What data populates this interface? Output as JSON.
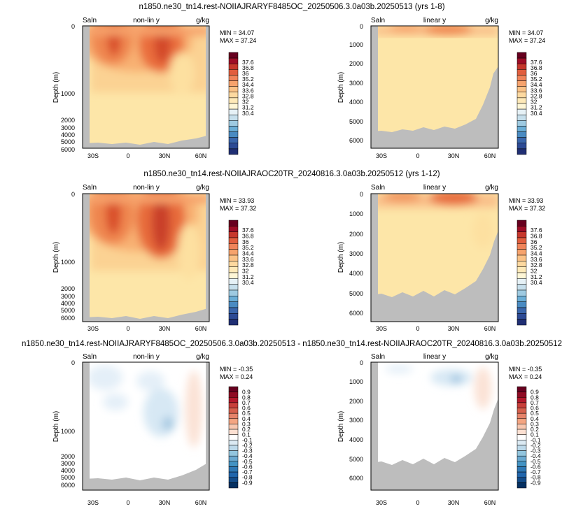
{
  "rows": [
    {
      "title": "n1850.ne30_tn14.rest-NOIIAJRARYF8485OC_20250506.3.0a03b.20250513 (yrs 1-8)",
      "min_text": "MIN = 34.07",
      "max_text": "MAX = 37.24",
      "colorbar": [
        "37.6",
        "36.8",
        "36",
        "35.2",
        "34.4",
        "33.6",
        "32.8",
        "32",
        "31.2",
        "30.4"
      ]
    },
    {
      "title": "n1850.ne30_tn14.rest-NOIIAJRAOC20TR_20240816.3.0a03b.20250512 (yrs 1-12)",
      "min_text": "MIN = 33.93",
      "max_text": "MAX = 37.32",
      "colorbar": [
        "37.6",
        "36.8",
        "36",
        "35.2",
        "34.4",
        "33.6",
        "32.8",
        "32",
        "31.2",
        "30.4"
      ]
    },
    {
      "title": "n1850.ne30_tn14.rest-NOIIAJRARYF8485OC_20250506.3.0a03b.20250513 - n1850.ne30_tn14.rest-NOIIAJRAOC20TR_20240816.3.0a03b.20250512",
      "min_text": "MIN = -0.35",
      "max_text": "MAX =  0.24",
      "colorbar": [
        "0.9",
        "0.8",
        "0.7",
        "0.6",
        "0.5",
        "0.4",
        "0.3",
        "0.2",
        "0.1",
        "-0.1",
        "-0.2",
        "-0.3",
        "-0.4",
        "-0.5",
        "-0.6",
        "-0.7",
        "-0.8",
        "-0.9"
      ]
    }
  ],
  "panel_labels": {
    "variable": "Saln",
    "units": "g/kg",
    "left_mode": "non-lin y",
    "right_mode": "linear y",
    "ylabel": "Depth (m)"
  },
  "chart_data": [
    {
      "type": "heatmap",
      "variable": "Saln",
      "units": "g/kg",
      "yscale": "non-lin y",
      "ylabel": "Depth (m)",
      "xticks": [
        "30S",
        "0",
        "30N",
        "60N"
      ],
      "yticks": [
        "0",
        "1000",
        "2000",
        "3000",
        "4000",
        "5000",
        "6000"
      ],
      "min": 34.07,
      "max": 37.24
    },
    {
      "type": "heatmap",
      "variable": "Saln",
      "units": "g/kg",
      "yscale": "linear y",
      "ylabel": "Depth (m)",
      "xticks": [
        "30S",
        "0",
        "30N",
        "60N"
      ],
      "yticks": [
        "0",
        "1000",
        "2000",
        "3000",
        "4000",
        "5000",
        "6000"
      ],
      "min": 34.07,
      "max": 37.24
    },
    {
      "type": "heatmap",
      "variable": "Saln",
      "units": "g/kg",
      "yscale": "non-lin y",
      "ylabel": "Depth (m)",
      "xticks": [
        "30S",
        "0",
        "30N",
        "60N"
      ],
      "yticks": [
        "0",
        "1000",
        "2000",
        "3000",
        "4000",
        "5000",
        "6000"
      ],
      "min": 33.93,
      "max": 37.32
    },
    {
      "type": "heatmap",
      "variable": "Saln",
      "units": "g/kg",
      "yscale": "linear y",
      "ylabel": "Depth (m)",
      "xticks": [
        "30S",
        "0",
        "30N",
        "60N"
      ],
      "yticks": [
        "0",
        "1000",
        "2000",
        "3000",
        "4000",
        "5000",
        "6000"
      ],
      "min": 33.93,
      "max": 37.32
    },
    {
      "type": "heatmap",
      "variable": "Saln",
      "units": "g/kg",
      "yscale": "non-lin y",
      "ylabel": "Depth (m)",
      "xticks": [
        "30S",
        "0",
        "30N",
        "60N"
      ],
      "yticks": [
        "0",
        "1000",
        "2000",
        "3000",
        "4000",
        "5000",
        "6000"
      ],
      "min": -0.35,
      "max": 0.24
    },
    {
      "type": "heatmap",
      "variable": "Saln",
      "units": "g/kg",
      "yscale": "linear y",
      "ylabel": "Depth (m)",
      "xticks": [
        "30S",
        "0",
        "30N",
        "60N"
      ],
      "yticks": [
        "0",
        "1000",
        "2000",
        "3000",
        "4000",
        "5000",
        "6000"
      ],
      "min": -0.35,
      "max": 0.24
    }
  ]
}
